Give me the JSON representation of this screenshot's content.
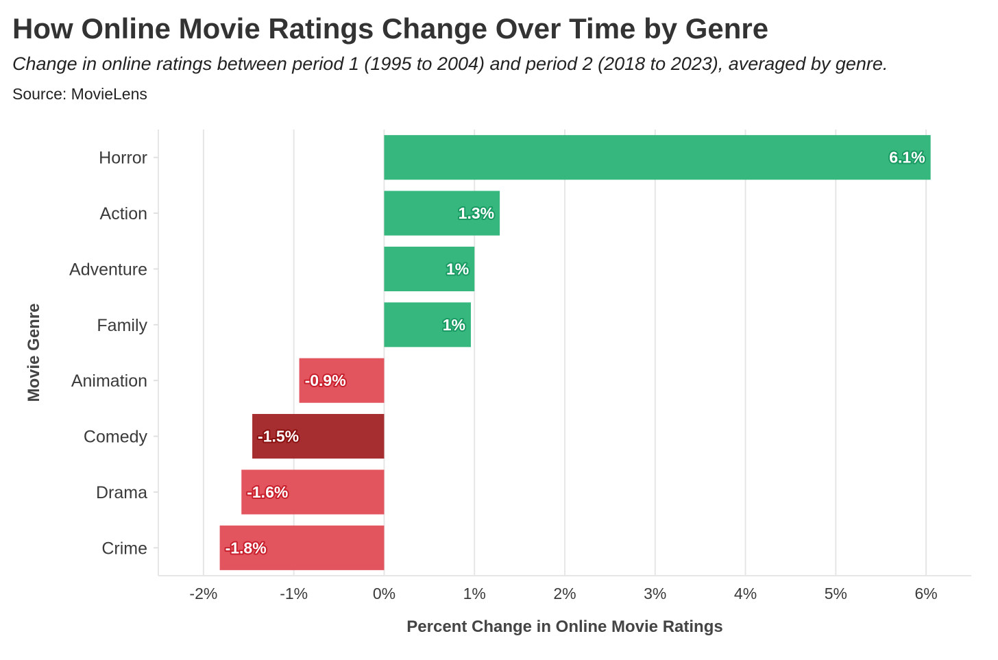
{
  "title": "How Online Movie Ratings Change Over Time by Genre",
  "subtitle": "Change in online ratings between period 1 (1995 to 2004) and period 2 (2018 to 2023), averaged by genre.",
  "source": "Source: MovieLens",
  "chart_data": {
    "type": "bar",
    "orientation": "horizontal",
    "categories": [
      "Horror",
      "Action",
      "Adventure",
      "Family",
      "Animation",
      "Comedy",
      "Drama",
      "Crime"
    ],
    "values": [
      6.05,
      1.28,
      1.0,
      0.96,
      -0.94,
      -1.46,
      -1.58,
      -1.82
    ],
    "value_labels": [
      "6.1%",
      "1.3%",
      "1%",
      "1%",
      "-0.9%",
      "-1.5%",
      "-1.6%",
      "-1.8%"
    ],
    "bar_colors": [
      "#36B77E",
      "#36B77E",
      "#36B77E",
      "#36B77E",
      "#E2545E",
      "#A72E30",
      "#E2545E",
      "#E2545E"
    ],
    "label_outline_colors": [
      "#1A9A63",
      "#1A9A63",
      "#1A9A63",
      "#1A9A63",
      "#C8202D",
      "#8A1010",
      "#C8202D",
      "#C8202D"
    ],
    "xlabel": "Percent Change in Online Movie Ratings",
    "ylabel": "Movie Genre",
    "xlim": [
      -2.5,
      6.5
    ],
    "xticks": [
      -2,
      -1,
      0,
      1,
      2,
      3,
      4,
      5,
      6
    ],
    "xtick_labels": [
      "-2%",
      "-1%",
      "0%",
      "1%",
      "2%",
      "3%",
      "4%",
      "5%",
      "6%"
    ],
    "grid": "vertical",
    "legend": "none"
  }
}
